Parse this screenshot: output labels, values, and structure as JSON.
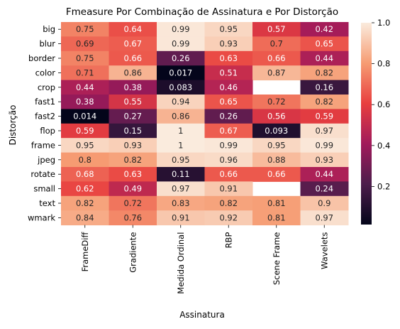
{
  "chart_data": {
    "type": "heatmap",
    "title": "Fmeasure Por Combinação de Assinatura e Por Distorção",
    "xlabel": "Assinatura",
    "ylabel": "Distorção",
    "x_categories": [
      "FrameDiff",
      "Gradiente",
      "Medida Ordinal",
      "RBP",
      "Scene Frame",
      "Wavelets"
    ],
    "y_categories": [
      "big",
      "blur",
      "border",
      "color",
      "crop",
      "fast1",
      "fast2",
      "flop",
      "frame",
      "jpeg",
      "rotate",
      "small",
      "text",
      "wmark"
    ],
    "values": [
      [
        0.75,
        0.64,
        0.99,
        0.95,
        0.57,
        0.42
      ],
      [
        0.69,
        0.67,
        0.99,
        0.93,
        0.7,
        0.65
      ],
      [
        0.75,
        0.66,
        0.26,
        0.63,
        0.66,
        0.44
      ],
      [
        0.71,
        0.86,
        0.017,
        0.51,
        0.87,
        0.82
      ],
      [
        0.44,
        0.38,
        0.083,
        0.46,
        null,
        0.16
      ],
      [
        0.38,
        0.55,
        0.94,
        0.65,
        0.72,
        0.82
      ],
      [
        0.014,
        0.27,
        0.86,
        0.26,
        0.56,
        0.59
      ],
      [
        0.59,
        0.15,
        1,
        0.67,
        0.093,
        0.97
      ],
      [
        0.95,
        0.93,
        1,
        0.99,
        0.95,
        0.99
      ],
      [
        0.8,
        0.82,
        0.95,
        0.96,
        0.88,
        0.93
      ],
      [
        0.68,
        0.63,
        0.11,
        0.66,
        0.66,
        0.44
      ],
      [
        0.62,
        0.49,
        0.97,
        0.91,
        null,
        0.24
      ],
      [
        0.82,
        0.72,
        0.83,
        0.82,
        0.81,
        0.9
      ],
      [
        0.84,
        0.76,
        0.91,
        0.92,
        0.81,
        0.97
      ]
    ],
    "colorbar": {
      "range": [
        0.014,
        1.0
      ],
      "ticks": [
        "0.2",
        "0.4",
        "0.6",
        "0.8",
        "1.0"
      ],
      "colormap": "rocket",
      "colormap_stops": [
        "#03051a",
        "#4c1d4b",
        "#a11a5b",
        "#e83f3f",
        "#f69c73",
        "#faebdd"
      ]
    }
  }
}
